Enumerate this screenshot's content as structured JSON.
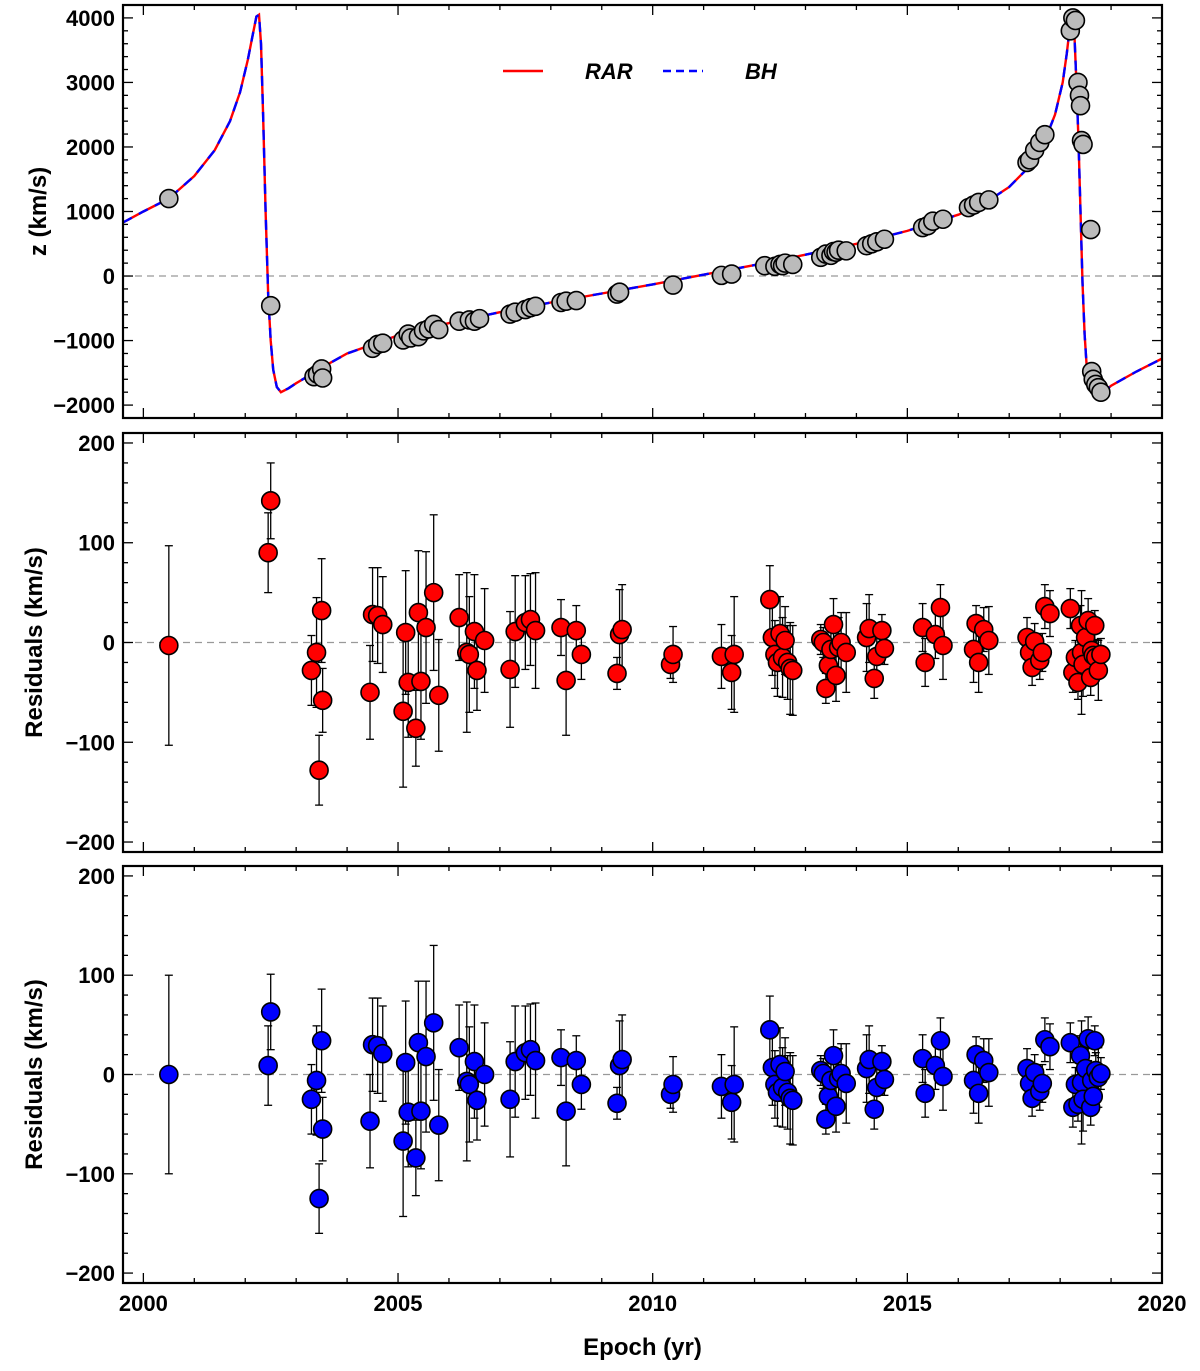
{
  "chart_data": [
    {
      "type": "scatter",
      "panel": "top",
      "ylabel": "z (km/s)",
      "xlim": [
        1999.6,
        2020
      ],
      "ylim": [
        -2200,
        4200
      ],
      "yticks": [
        -2000,
        -1000,
        0,
        1000,
        2000,
        3000,
        4000
      ],
      "legend": {
        "position": "top-center",
        "entries": [
          {
            "label": "RAR",
            "color": "#ff0000",
            "style": "solid"
          },
          {
            "label": "BH",
            "color": "#0000ff",
            "style": "dashed"
          }
        ]
      },
      "marker_color": "#bbbbbb",
      "curve": {
        "x": [
          1999.6,
          2000.0,
          2000.5,
          2001.0,
          2001.4,
          2001.7,
          2001.9,
          2002.05,
          2002.15,
          2002.22,
          2002.27,
          2002.31,
          2002.35,
          2002.4,
          2002.45,
          2002.5,
          2002.55,
          2002.62,
          2002.7,
          2002.85,
          2003.0,
          2003.3,
          2003.5,
          2004.0,
          2005.0,
          2006.0,
          2007.0,
          2008.0,
          2009.0,
          2010.0,
          2011.0,
          2012.0,
          2013.0,
          2014.0,
          2015.0,
          2016.0,
          2016.5,
          2017.0,
          2017.4,
          2017.7,
          2017.9,
          2018.05,
          2018.13,
          2018.19,
          2018.24,
          2018.28,
          2018.32,
          2018.36,
          2018.4,
          2018.44,
          2018.48,
          2018.53,
          2018.6,
          2018.7,
          2018.85,
          2019.0,
          2019.5,
          2020.0
        ],
        "y": [
          830,
          1000,
          1200,
          1550,
          1950,
          2400,
          2850,
          3350,
          3750,
          4020,
          4050,
          3600,
          2500,
          1000,
          -300,
          -1000,
          -1450,
          -1720,
          -1800,
          -1740,
          -1660,
          -1520,
          -1420,
          -1200,
          -920,
          -730,
          -560,
          -410,
          -270,
          -130,
          20,
          170,
          330,
          500,
          700,
          950,
          1120,
          1380,
          1700,
          2100,
          2500,
          3000,
          3450,
          3850,
          4040,
          3750,
          3000,
          2100,
          1000,
          -100,
          -900,
          -1500,
          -1750,
          -1820,
          -1800,
          -1700,
          -1480,
          -1280
        ]
      },
      "points": {
        "x": [
          2000.5,
          2002.5,
          2003.35,
          2003.42,
          2003.5,
          2003.52,
          2004.5,
          2004.6,
          2004.7,
          2005.1,
          2005.2,
          2005.25,
          2005.4,
          2005.5,
          2005.6,
          2005.7,
          2005.8,
          2006.2,
          2006.4,
          2006.5,
          2006.6,
          2007.2,
          2007.3,
          2007.5,
          2007.6,
          2007.7,
          2008.2,
          2008.3,
          2008.5,
          2009.3,
          2009.35,
          2010.4,
          2011.35,
          2011.55,
          2012.2,
          2012.4,
          2012.5,
          2012.55,
          2012.6,
          2012.75,
          2013.3,
          2013.4,
          2013.5,
          2013.55,
          2013.6,
          2013.65,
          2013.8,
          2014.2,
          2014.3,
          2014.4,
          2014.55,
          2015.3,
          2015.4,
          2015.5,
          2015.7,
          2016.2,
          2016.3,
          2016.4,
          2016.6,
          2017.35,
          2017.4,
          2017.5,
          2017.6,
          2017.7,
          2018.2,
          2018.25,
          2018.3,
          2018.35,
          2018.38,
          2018.4,
          2018.42,
          2018.45,
          2018.6,
          2018.62,
          2018.65,
          2018.7,
          2018.75,
          2018.8
        ],
        "y": [
          1200,
          -460,
          -1560,
          -1520,
          -1440,
          -1580,
          -1120,
          -1060,
          -1040,
          -990,
          -900,
          -960,
          -940,
          -850,
          -820,
          -750,
          -830,
          -700,
          -680,
          -700,
          -660,
          -590,
          -560,
          -520,
          -490,
          -470,
          -410,
          -390,
          -380,
          -280,
          -250,
          -140,
          10,
          30,
          160,
          150,
          180,
          160,
          200,
          180,
          290,
          340,
          320,
          380,
          370,
          400,
          390,
          470,
          500,
          530,
          570,
          750,
          780,
          850,
          880,
          1060,
          1100,
          1140,
          1180,
          1760,
          1800,
          1950,
          2070,
          2190,
          3800,
          4000,
          3960,
          3000,
          2800,
          2640,
          2100,
          2040,
          720,
          -1480,
          -1600,
          -1680,
          -1730,
          -1800
        ]
      }
    },
    {
      "type": "scatter",
      "panel": "middle",
      "model": "RAR",
      "ylabel": "Residuals (km/s)",
      "xlim": [
        1999.6,
        2020
      ],
      "ylim": [
        -210,
        210
      ],
      "yticks": [
        -200,
        -100,
        0,
        100,
        200
      ],
      "marker_color": "#ff0000",
      "points": {
        "x": [
          2000.5,
          2002.45,
          2002.5,
          2003.3,
          2003.4,
          2003.45,
          2003.5,
          2003.52,
          2004.45,
          2004.5,
          2004.6,
          2004.7,
          2005.1,
          2005.15,
          2005.2,
          2005.35,
          2005.4,
          2005.45,
          2005.55,
          2005.7,
          2005.8,
          2006.2,
          2006.35,
          2006.4,
          2006.5,
          2006.55,
          2006.7,
          2007.2,
          2007.3,
          2007.5,
          2007.6,
          2007.7,
          2008.2,
          2008.3,
          2008.5,
          2008.6,
          2009.3,
          2009.35,
          2009.4,
          2010.35,
          2010.4,
          2011.35,
          2011.55,
          2011.6,
          2012.3,
          2012.35,
          2012.4,
          2012.45,
          2012.5,
          2012.55,
          2012.6,
          2012.65,
          2012.7,
          2012.75,
          2013.3,
          2013.35,
          2013.4,
          2013.45,
          2013.5,
          2013.55,
          2013.6,
          2013.65,
          2013.7,
          2013.8,
          2014.2,
          2014.25,
          2014.35,
          2014.4,
          2014.5,
          2014.55,
          2015.3,
          2015.35,
          2015.55,
          2015.65,
          2015.7,
          2016.3,
          2016.35,
          2016.4,
          2016.5,
          2016.6,
          2017.35,
          2017.4,
          2017.45,
          2017.5,
          2017.6,
          2017.65,
          2017.7,
          2017.8,
          2018.2,
          2018.25,
          2018.3,
          2018.35,
          2018.4,
          2018.42,
          2018.45,
          2018.5,
          2018.55,
          2018.6,
          2018.62,
          2018.65,
          2018.68,
          2018.7,
          2018.75,
          2018.8
        ],
        "y": [
          -3,
          90,
          142,
          -28,
          -10,
          -128,
          32,
          -58,
          -50,
          28,
          27,
          18,
          -69,
          10,
          -40,
          -86,
          30,
          -39,
          15,
          50,
          -53,
          25,
          -10,
          -12,
          11,
          -28,
          2,
          -27,
          11,
          20,
          23,
          12,
          15,
          -38,
          12,
          -12,
          -31,
          8,
          13,
          -22,
          -12,
          -14,
          -30,
          -12,
          43,
          5,
          -12,
          -20,
          9,
          -15,
          2,
          -20,
          -26,
          -28,
          3,
          0,
          -46,
          -23,
          -7,
          18,
          -33,
          -5,
          0,
          -10,
          5,
          14,
          -36,
          -14,
          12,
          -6,
          15,
          -20,
          8,
          35,
          -3,
          -7,
          19,
          -20,
          13,
          2,
          5,
          -10,
          -25,
          1,
          -18,
          -10,
          36,
          29,
          34,
          -30,
          -15,
          -40,
          17,
          -10,
          -22,
          5,
          22,
          -35,
          -8,
          -13,
          17,
          -15,
          -28,
          -12
        ],
        "err": [
          100,
          40,
          38,
          35,
          55,
          35,
          52,
          32,
          47,
          47,
          48,
          48,
          76,
          62,
          55,
          38,
          62,
          58,
          76,
          78,
          56,
          43,
          80,
          58,
          57,
          40,
          52,
          58,
          56,
          47,
          46,
          58,
          28,
          55,
          25,
          25,
          16,
          45,
          45,
          14,
          28,
          32,
          37,
          58,
          34,
          38,
          34,
          34,
          37,
          40,
          34,
          37,
          46,
          45,
          15,
          15,
          15,
          20,
          20,
          26,
          26,
          30,
          30,
          40,
          34,
          34,
          20,
          20,
          16,
          16,
          24,
          24,
          24,
          23,
          34,
          33,
          18,
          30,
          22,
          34,
          20,
          18,
          18,
          18,
          19,
          19,
          22,
          23,
          20,
          20,
          17,
          17,
          20,
          62,
          32,
          20,
          22,
          18,
          16,
          14,
          15,
          18,
          30,
          16
        ]
      }
    },
    {
      "type": "scatter",
      "panel": "bottom",
      "model": "BH",
      "xlabel": "Epoch (yr)",
      "ylabel": "Residuals (km/s)",
      "xlim": [
        1999.6,
        2020
      ],
      "ylim": [
        -210,
        210
      ],
      "xticks": [
        2000,
        2005,
        2010,
        2015,
        2020
      ],
      "yticks": [
        -200,
        -100,
        0,
        100,
        200
      ],
      "marker_color": "#0000ff",
      "points": {
        "x": [
          2000.5,
          2002.45,
          2002.5,
          2003.3,
          2003.4,
          2003.45,
          2003.5,
          2003.52,
          2004.45,
          2004.5,
          2004.6,
          2004.7,
          2005.1,
          2005.15,
          2005.2,
          2005.35,
          2005.4,
          2005.45,
          2005.55,
          2005.7,
          2005.8,
          2006.2,
          2006.35,
          2006.4,
          2006.5,
          2006.55,
          2006.7,
          2007.2,
          2007.3,
          2007.5,
          2007.6,
          2007.7,
          2008.2,
          2008.3,
          2008.5,
          2008.6,
          2009.3,
          2009.35,
          2009.4,
          2010.35,
          2010.4,
          2011.35,
          2011.55,
          2011.6,
          2012.3,
          2012.35,
          2012.4,
          2012.45,
          2012.5,
          2012.55,
          2012.6,
          2012.65,
          2012.7,
          2012.75,
          2013.3,
          2013.35,
          2013.4,
          2013.45,
          2013.5,
          2013.55,
          2013.6,
          2013.65,
          2013.7,
          2013.8,
          2014.2,
          2014.25,
          2014.35,
          2014.4,
          2014.5,
          2014.55,
          2015.3,
          2015.35,
          2015.55,
          2015.65,
          2015.7,
          2016.3,
          2016.35,
          2016.4,
          2016.5,
          2016.6,
          2017.35,
          2017.4,
          2017.45,
          2017.5,
          2017.6,
          2017.65,
          2017.7,
          2017.8,
          2018.2,
          2018.25,
          2018.3,
          2018.35,
          2018.4,
          2018.42,
          2018.45,
          2018.5,
          2018.55,
          2018.6,
          2018.62,
          2018.65,
          2018.68,
          2018.7,
          2018.75,
          2018.8
        ],
        "y": [
          0,
          9,
          63,
          -25,
          -6,
          -125,
          34,
          -55,
          -47,
          30,
          29,
          21,
          -67,
          12,
          -38,
          -84,
          32,
          -37,
          18,
          52,
          -51,
          27,
          -7,
          -10,
          13,
          -26,
          0,
          -25,
          13,
          22,
          25,
          14,
          17,
          -37,
          14,
          -10,
          -29,
          9,
          15,
          -20,
          -10,
          -12,
          -28,
          -10,
          45,
          7,
          -10,
          -18,
          10,
          -13,
          3,
          -18,
          -24,
          -26,
          4,
          1,
          -45,
          -22,
          -6,
          19,
          -32,
          -4,
          1,
          -9,
          6,
          15,
          -35,
          -13,
          13,
          -5,
          16,
          -19,
          9,
          34,
          -2,
          -6,
          20,
          -19,
          14,
          2,
          6,
          -9,
          -24,
          2,
          -17,
          -9,
          35,
          28,
          32,
          -33,
          -10,
          -30,
          19,
          -8,
          -25,
          6,
          36,
          -33,
          -6,
          -22,
          34,
          4,
          -3,
          1
        ],
        "err": [
          100,
          40,
          38,
          35,
          55,
          35,
          52,
          32,
          47,
          47,
          48,
          48,
          76,
          62,
          55,
          38,
          62,
          58,
          76,
          78,
          56,
          43,
          80,
          58,
          57,
          40,
          52,
          58,
          56,
          47,
          46,
          58,
          28,
          55,
          25,
          25,
          16,
          45,
          45,
          14,
          28,
          32,
          37,
          58,
          34,
          38,
          34,
          34,
          37,
          40,
          34,
          37,
          46,
          45,
          15,
          15,
          15,
          20,
          20,
          26,
          26,
          30,
          30,
          40,
          34,
          34,
          20,
          20,
          16,
          16,
          24,
          24,
          24,
          23,
          34,
          33,
          18,
          30,
          22,
          34,
          20,
          18,
          18,
          18,
          19,
          19,
          22,
          23,
          20,
          20,
          17,
          17,
          20,
          62,
          32,
          20,
          22,
          18,
          16,
          14,
          15,
          18,
          30,
          16
        ]
      }
    }
  ]
}
